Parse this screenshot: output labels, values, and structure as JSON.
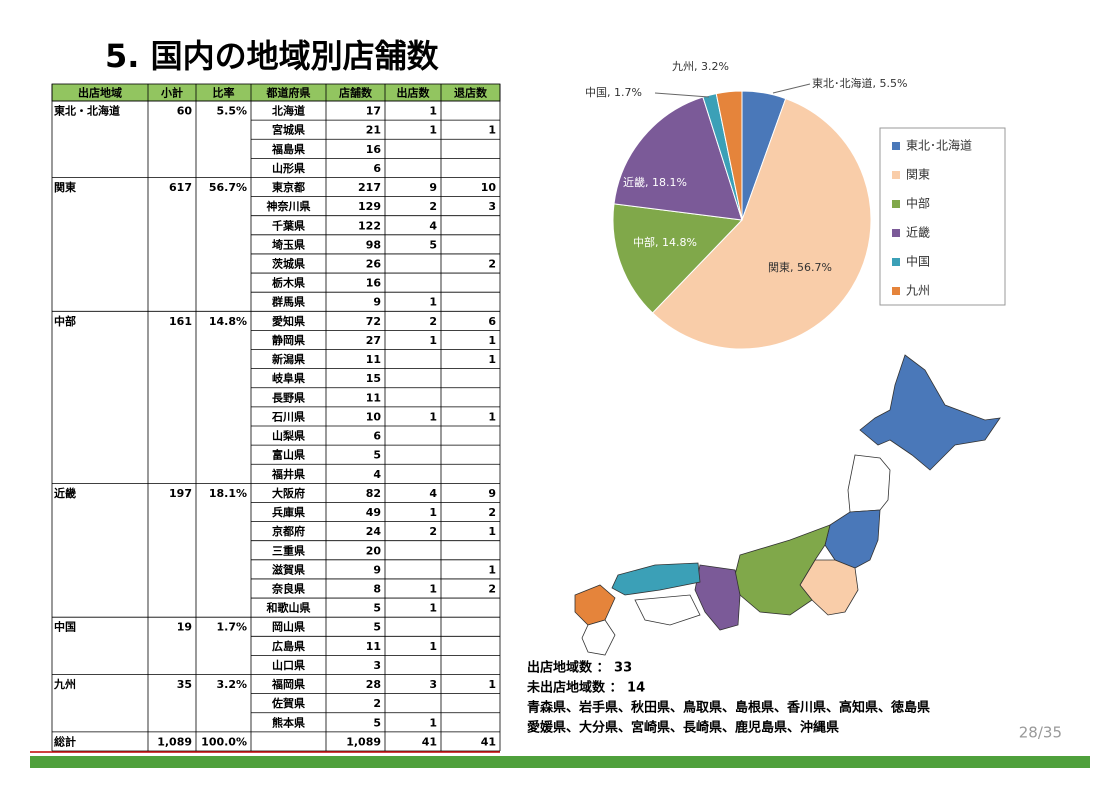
{
  "header": {
    "title": "5. 国内の地域別店舗数"
  },
  "table": {
    "columns": [
      "出店地域",
      "小計",
      "比率",
      "都道府県",
      "店舗数",
      "出店数",
      "退店数"
    ],
    "rows": [
      [
        "東北・北海道",
        "60",
        "5.5%",
        "北海道",
        "17",
        "1",
        null
      ],
      [
        null,
        null,
        null,
        "宮城県",
        "21",
        "1",
        "1"
      ],
      [
        null,
        null,
        null,
        "福島県",
        "16",
        null,
        null
      ],
      [
        null,
        null,
        null,
        "山形県",
        "6",
        null,
        null
      ],
      [
        "関東",
        "617",
        "56.7%",
        "東京都",
        "217",
        "9",
        "10"
      ],
      [
        null,
        null,
        null,
        "神奈川県",
        "129",
        "2",
        "3"
      ],
      [
        null,
        null,
        null,
        "千葉県",
        "122",
        "4",
        null
      ],
      [
        null,
        null,
        null,
        "埼玉県",
        "98",
        "5",
        null
      ],
      [
        null,
        null,
        null,
        "茨城県",
        "26",
        null,
        "2"
      ],
      [
        null,
        null,
        null,
        "栃木県",
        "16",
        null,
        null
      ],
      [
        null,
        null,
        null,
        "群馬県",
        "9",
        "1",
        null
      ],
      [
        "中部",
        "161",
        "14.8%",
        "愛知県",
        "72",
        "2",
        "6"
      ],
      [
        null,
        null,
        null,
        "静岡県",
        "27",
        "1",
        "1"
      ],
      [
        null,
        null,
        null,
        "新潟県",
        "11",
        null,
        "1"
      ],
      [
        null,
        null,
        null,
        "岐阜県",
        "15",
        null,
        null
      ],
      [
        null,
        null,
        null,
        "長野県",
        "11",
        null,
        null
      ],
      [
        null,
        null,
        null,
        "石川県",
        "10",
        "1",
        "1"
      ],
      [
        null,
        null,
        null,
        "山梨県",
        "6",
        null,
        null
      ],
      [
        null,
        null,
        null,
        "富山県",
        "5",
        null,
        null
      ],
      [
        null,
        null,
        null,
        "福井県",
        "4",
        null,
        null
      ],
      [
        "近畿",
        "197",
        "18.1%",
        "大阪府",
        "82",
        "4",
        "9"
      ],
      [
        null,
        null,
        null,
        "兵庫県",
        "49",
        "1",
        "2"
      ],
      [
        null,
        null,
        null,
        "京都府",
        "24",
        "2",
        "1"
      ],
      [
        null,
        null,
        null,
        "三重県",
        "20",
        null,
        null
      ],
      [
        null,
        null,
        null,
        "滋賀県",
        "9",
        null,
        "1"
      ],
      [
        null,
        null,
        null,
        "奈良県",
        "8",
        "1",
        "2"
      ],
      [
        null,
        null,
        null,
        "和歌山県",
        "5",
        "1",
        null
      ],
      [
        "中国",
        "19",
        "1.7%",
        "岡山県",
        "5",
        null,
        null
      ],
      [
        null,
        null,
        null,
        "広島県",
        "11",
        "1",
        null
      ],
      [
        null,
        null,
        null,
        "山口県",
        "3",
        null,
        null
      ],
      [
        "九州",
        "35",
        "3.2%",
        "福岡県",
        "28",
        "3",
        "1"
      ],
      [
        null,
        null,
        null,
        "佐賀県",
        "2",
        null,
        null
      ],
      [
        null,
        null,
        null,
        "熊本県",
        "5",
        "1",
        null
      ],
      [
        "総計",
        "1,089",
        "100.0%",
        null,
        "1,089",
        "41",
        "41"
      ]
    ]
  },
  "chart_data": {
    "type": "pie",
    "categories": [
      "東北･北海道",
      "関東",
      "中部",
      "近畿",
      "中国",
      "九州"
    ],
    "values": [
      5.5,
      56.7,
      14.8,
      18.1,
      1.7,
      3.2
    ],
    "value_labels": [
      "東北･北海道, 5.5%",
      "関東, 56.7%",
      "中部, 14.8%",
      "近畿, 18.1%",
      "中国, 1.7%",
      "九州, 3.2%"
    ],
    "colors": [
      "#4a78b9",
      "#f9cda9",
      "#80a84a",
      "#7b5a98",
      "#3ba0b7",
      "#e5843b"
    ],
    "legend": "right"
  },
  "notes": {
    "lines": [
      "出店地域数 ： 33",
      "未出店地域数 ： 14",
      "青森県、岩手県、秋田県、鳥取県、島根県、香川県、高知県、徳島県",
      "愛媛県、大分県、宮崎県、長崎県、鹿児島県、沖縄県"
    ]
  },
  "page_number": "28/35"
}
